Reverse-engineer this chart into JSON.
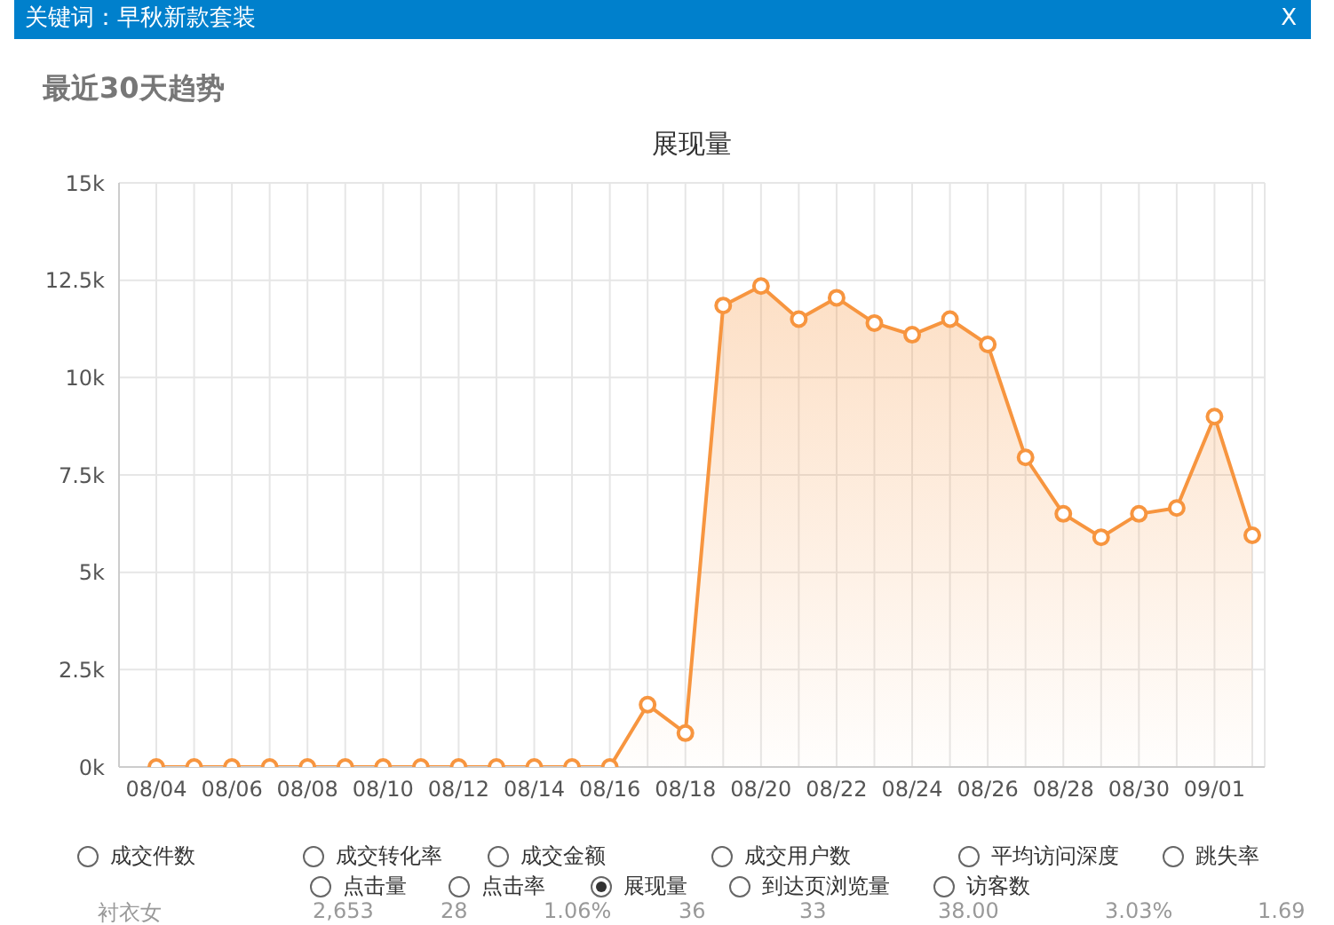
{
  "chart_data": {
    "type": "area",
    "title": "展现量",
    "subtitle": "最近30天趋势",
    "categories": [
      "08/04",
      null,
      "08/06",
      null,
      "08/08",
      null,
      "08/10",
      null,
      "08/12",
      null,
      "08/14",
      null,
      "08/16",
      null,
      "08/18",
      null,
      "08/20",
      null,
      "08/22",
      null,
      "08/24",
      null,
      "08/26",
      null,
      "08/28",
      null,
      "08/30",
      null,
      "09/01",
      null
    ],
    "series": [
      {
        "color": "#f7953f",
        "values": [
          0,
          0,
          0,
          0,
          0,
          0,
          0,
          0,
          0,
          0,
          0,
          0,
          0,
          1600,
          870,
          11850,
          12350,
          11500,
          12050,
          11400,
          11100,
          11500,
          10850,
          7950,
          6500,
          5900,
          6500,
          6650,
          9000,
          5950
        ]
      }
    ],
    "ylim": [
      0,
      15000
    ],
    "yticks": [
      {
        "value": 0,
        "label": "0k"
      },
      {
        "value": 2500,
        "label": "2.5k"
      },
      {
        "value": 5000,
        "label": "5k"
      },
      {
        "value": 7500,
        "label": "7.5k"
      },
      {
        "value": 10000,
        "label": "10k"
      },
      {
        "value": 12500,
        "label": "12.5k"
      },
      {
        "value": 15000,
        "label": "15k"
      }
    ],
    "grid": true,
    "marker": "circle",
    "annotations": [
      "关键词：早秋新款套装",
      "X",
      "成交件数",
      "成交转化率",
      "成交金额",
      "成交用户数",
      "平均访问深度",
      "跳失率",
      "点击量",
      "点击率",
      "展现量",
      "到达页浏览量",
      "访客数",
      "衬衣女",
      "2,653",
      "28",
      "1.06%",
      "36",
      "33",
      "38.00",
      "3.03%",
      "1.69"
    ]
  }
}
